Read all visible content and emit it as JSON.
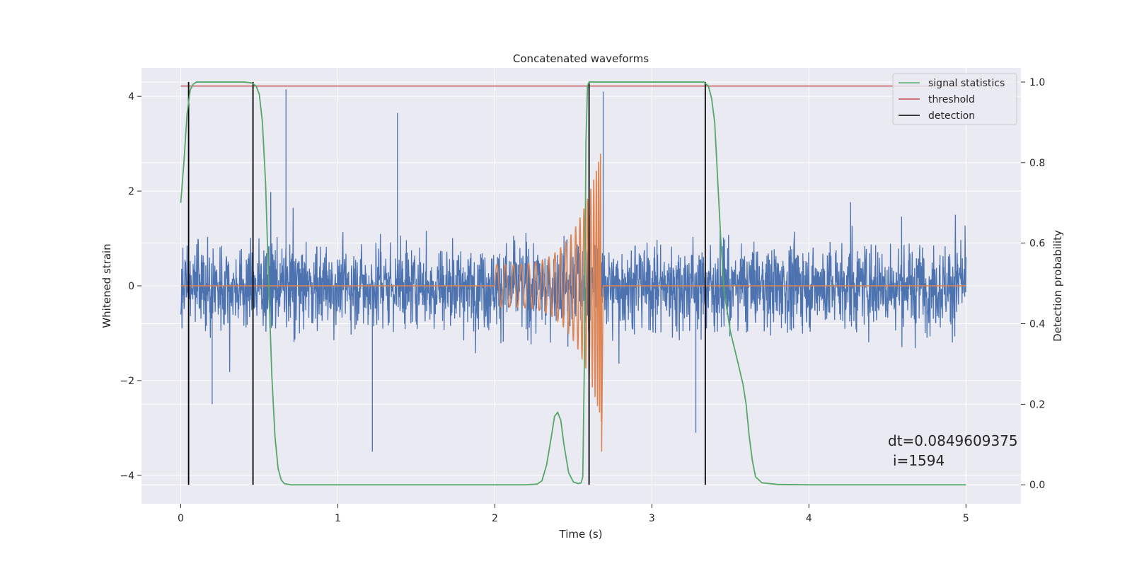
{
  "chart_data": {
    "type": "line",
    "title": "Concatenated waveforms",
    "xlabel": "Time (s)",
    "ylabel": "Whitened strain",
    "ylabel_right": "Detection probability",
    "xlim": [
      -0.25,
      5.35
    ],
    "ylim": [
      -4.6,
      4.6
    ],
    "ylim_right": [
      -0.047,
      1.035
    ],
    "x_ticks": [
      0,
      1,
      2,
      3,
      4,
      5
    ],
    "x_tick_labels": [
      "0",
      "1",
      "2",
      "3",
      "4",
      "5"
    ],
    "y_ticks": [
      -4,
      -2,
      0,
      2,
      4
    ],
    "y_tick_labels": [
      "−4",
      "−2",
      "0",
      "2",
      "4"
    ],
    "y_right_ticks": [
      0.0,
      0.2,
      0.4,
      0.6,
      0.8,
      1.0
    ],
    "y_right_tick_labels": [
      "0.0",
      "0.2",
      "0.4",
      "0.6",
      "0.8",
      "1.0"
    ],
    "grid": true,
    "legend_position": "top-right",
    "legend": [
      {
        "label": "signal statistics",
        "color": "#55a868"
      },
      {
        "label": "threshold",
        "color": "#c44e52"
      },
      {
        "label": "detection",
        "color": "#000000"
      }
    ],
    "colors": {
      "noise": "#4c72b0",
      "signal": "#dd8452",
      "signal_statistics": "#55a868",
      "threshold": "#c44e52",
      "detection": "#000000",
      "plot_background": "#eaeaf2",
      "grid": "#ffffff"
    },
    "noise_series": {
      "name": "whitened strain",
      "time_range": [
        0,
        5
      ],
      "typical_abs_max": 2.0,
      "max": 4.15,
      "min": -3.5
    },
    "signal_series": {
      "name": "injected waveform",
      "start": 2.0,
      "merger": 2.68,
      "start_amplitude": 0.45,
      "peak_amplitude": 3.2,
      "min": -3.5
    },
    "threshold_value": 0.99,
    "signal_statistics": {
      "x": [
        0.0,
        0.02,
        0.04,
        0.06,
        0.08,
        0.1,
        0.2,
        0.3,
        0.4,
        0.45,
        0.48,
        0.5,
        0.52,
        0.54,
        0.56,
        0.58,
        0.6,
        0.62,
        0.64,
        0.66,
        0.7,
        1.0,
        1.5,
        2.0,
        2.2,
        2.27,
        2.3,
        2.33,
        2.36,
        2.38,
        2.4,
        2.42,
        2.44,
        2.47,
        2.5,
        2.53,
        2.55,
        2.56,
        2.57,
        2.58,
        2.59,
        2.6,
        2.62,
        2.65,
        2.7,
        2.8,
        3.0,
        3.2,
        3.33,
        3.36,
        3.38,
        3.4,
        3.42,
        3.44,
        3.46,
        3.5,
        3.55,
        3.58,
        3.6,
        3.62,
        3.64,
        3.66,
        3.7,
        3.8,
        4.0,
        4.5,
        5.0
      ],
      "y": [
        0.7,
        0.8,
        0.92,
        0.98,
        0.995,
        1.0,
        1.0,
        1.0,
        1.0,
        0.998,
        0.99,
        0.97,
        0.9,
        0.75,
        0.5,
        0.27,
        0.12,
        0.04,
        0.012,
        0.003,
        0.0,
        0.0,
        0.0,
        0.0,
        0.0,
        0.002,
        0.01,
        0.05,
        0.12,
        0.17,
        0.18,
        0.16,
        0.1,
        0.03,
        0.007,
        0.003,
        0.005,
        0.02,
        0.3,
        0.85,
        0.99,
        1.0,
        1.0,
        1.0,
        1.0,
        1.0,
        1.0,
        1.0,
        1.0,
        0.99,
        0.96,
        0.9,
        0.75,
        0.6,
        0.48,
        0.38,
        0.3,
        0.25,
        0.2,
        0.12,
        0.06,
        0.02,
        0.005,
        0.001,
        0.0,
        0.0,
        0.0
      ]
    },
    "detections": [
      0.05,
      0.46,
      2.6,
      3.34
    ],
    "annotation": {
      "line1": "dt=0.0849609375",
      "line2": "i=1594"
    }
  }
}
